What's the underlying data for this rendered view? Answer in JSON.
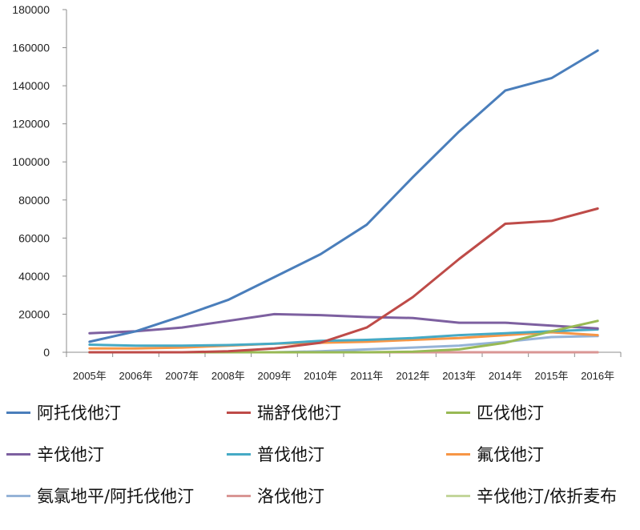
{
  "chart_data": {
    "type": "line",
    "title": "",
    "xlabel": "",
    "ylabel": "",
    "categories": [
      "2005年",
      "2006年",
      "2007年",
      "2008年",
      "2009年",
      "2010年",
      "2011年",
      "2012年",
      "2013年",
      "2014年",
      "2015年",
      "2016年"
    ],
    "y_ticks": [
      "0",
      "20000",
      "40000",
      "60000",
      "80000",
      "100000",
      "120000",
      "140000",
      "160000",
      "180000"
    ],
    "ylim": [
      0,
      180000
    ],
    "grid": false,
    "legend_position": "bottom",
    "series": [
      {
        "name": "阿托伐他汀",
        "color": "#4A7EBB",
        "values": [
          5500,
          11000,
          19000,
          27500,
          39500,
          51500,
          67000,
          92000,
          116000,
          137500,
          144000,
          158500
        ]
      },
      {
        "name": "瑞舒伐他汀",
        "color": "#BE4B48",
        "values": [
          0,
          0,
          0,
          500,
          2000,
          5000,
          13000,
          29000,
          49000,
          67500,
          69000,
          75500
        ]
      },
      {
        "name": "匹伐他汀",
        "color": "#98B954",
        "values": [
          0,
          0,
          0,
          0,
          0,
          0,
          0,
          300,
          1500,
          5000,
          11000,
          16500
        ]
      },
      {
        "name": "辛伐他汀",
        "color": "#7D60A0",
        "values": [
          10000,
          11000,
          13000,
          16500,
          20000,
          19500,
          18500,
          18000,
          15500,
          15500,
          14000,
          12500
        ]
      },
      {
        "name": "普伐他汀",
        "color": "#46AAC5",
        "values": [
          4000,
          3500,
          3500,
          3800,
          4500,
          6000,
          6500,
          7500,
          9000,
          10000,
          11000,
          12000
        ]
      },
      {
        "name": "氟伐他汀",
        "color": "#F79646",
        "values": [
          2000,
          2000,
          2500,
          3500,
          4500,
          5000,
          5500,
          6500,
          7500,
          9000,
          10500,
          9000
        ]
      },
      {
        "name": "氨氯地平/阿托伐他汀",
        "color": "#95B3D7",
        "values": [
          0,
          0,
          0,
          0,
          0,
          500,
          1500,
          2500,
          3500,
          5500,
          8000,
          8500
        ]
      },
      {
        "name": "洛伐他汀",
        "color": "#D99694",
        "values": [
          0,
          0,
          0,
          0,
          0,
          0,
          0,
          0,
          0,
          0,
          0,
          0
        ]
      },
      {
        "name": "辛伐他汀/依折麦布",
        "color": "#C3D69B",
        "values": [
          0,
          0,
          0,
          0,
          0,
          0,
          0,
          0,
          0,
          0,
          0,
          0
        ]
      }
    ]
  }
}
